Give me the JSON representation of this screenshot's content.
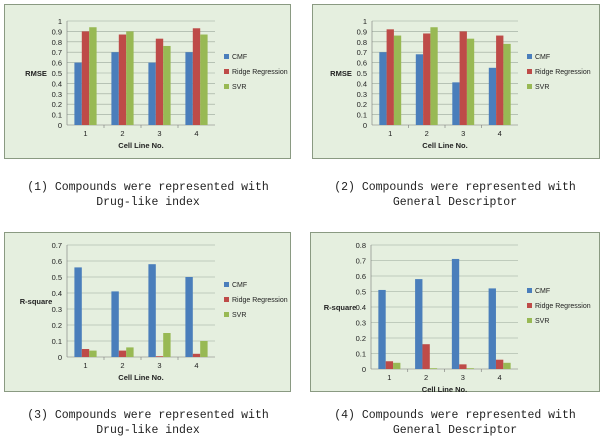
{
  "colors": {
    "cmf": "#4a7ebb",
    "ridge": "#be4b48",
    "svr": "#98b954",
    "panel_bg": "#e5efdf",
    "grid": "#9aa79a"
  },
  "chart_data": [
    {
      "type": "bar",
      "categories": [
        "1",
        "2",
        "3",
        "4"
      ],
      "ylabel": "RMSE",
      "xlabel": "Cell Line No.",
      "ylim": [
        0,
        1
      ],
      "yticks": [
        "0",
        "0.1",
        "0.2",
        "0.3",
        "0.4",
        "0.5",
        "0.6",
        "0.7",
        "0.8",
        "0.9",
        "1"
      ],
      "legend": "right",
      "series": [
        {
          "name": "CMF",
          "values": [
            0.6,
            0.7,
            0.6,
            0.7
          ]
        },
        {
          "name": "Ridge Regression",
          "values": [
            0.9,
            0.87,
            0.83,
            0.93
          ]
        },
        {
          "name": "SVR",
          "values": [
            0.94,
            0.9,
            0.76,
            0.87
          ]
        }
      ]
    },
    {
      "type": "bar",
      "categories": [
        "1",
        "2",
        "3",
        "4"
      ],
      "ylabel": "RMSE",
      "xlabel": "Cell Line No.",
      "ylim": [
        0,
        1
      ],
      "yticks": [
        "0",
        "0.1",
        "0.2",
        "0.3",
        "0.4",
        "0.5",
        "0.6",
        "0.7",
        "0.8",
        "0.9",
        "1"
      ],
      "legend": "right",
      "series": [
        {
          "name": "CMF",
          "values": [
            0.7,
            0.68,
            0.41,
            0.55
          ]
        },
        {
          "name": "Ridge Regression",
          "values": [
            0.92,
            0.88,
            0.9,
            0.86
          ]
        },
        {
          "name": "SVR",
          "values": [
            0.86,
            0.94,
            0.83,
            0.78
          ]
        }
      ]
    },
    {
      "type": "bar",
      "categories": [
        "1",
        "2",
        "3",
        "4"
      ],
      "ylabel": "R-square",
      "xlabel": "Cell Line No.",
      "ylim": [
        0,
        0.7
      ],
      "yticks": [
        "0",
        "0.1",
        "0.2",
        "0.3",
        "0.4",
        "0.5",
        "0.6",
        "0.7"
      ],
      "legend": "right",
      "series": [
        {
          "name": "CMF",
          "values": [
            0.56,
            0.41,
            0.58,
            0.5
          ]
        },
        {
          "name": "Ridge Regression",
          "values": [
            0.05,
            0.04,
            0.005,
            0.02
          ]
        },
        {
          "name": "SVR",
          "values": [
            0.04,
            0.06,
            0.15,
            0.1
          ]
        }
      ]
    },
    {
      "type": "bar",
      "categories": [
        "1",
        "2",
        "3",
        "4"
      ],
      "ylabel": "R-square",
      "xlabel": "Cell Line No.",
      "ylim": [
        0,
        0.8
      ],
      "yticks": [
        "0",
        "0.1",
        "0.2",
        "0.3",
        "0.4",
        "0.5",
        "0.6",
        "0.7",
        "0.8"
      ],
      "legend": "right",
      "series": [
        {
          "name": "CMF",
          "values": [
            0.51,
            0.58,
            0.71,
            0.52
          ]
        },
        {
          "name": "Ridge Regression",
          "values": [
            0.05,
            0.16,
            0.03,
            0.06
          ]
        },
        {
          "name": "SVR",
          "values": [
            0.04,
            0.005,
            0.005,
            0.04
          ]
        }
      ]
    }
  ],
  "captions": [
    {
      "line1": "(1) Compounds were represented with",
      "line2": "Drug-like index"
    },
    {
      "line1": "(2) Compounds were represented with",
      "line2": "General Descriptor"
    },
    {
      "line1": "(3) Compounds were represented with",
      "line2": "Drug-like index"
    },
    {
      "line1": "(4) Compounds were represented with",
      "line2": "General Descriptor"
    }
  ]
}
